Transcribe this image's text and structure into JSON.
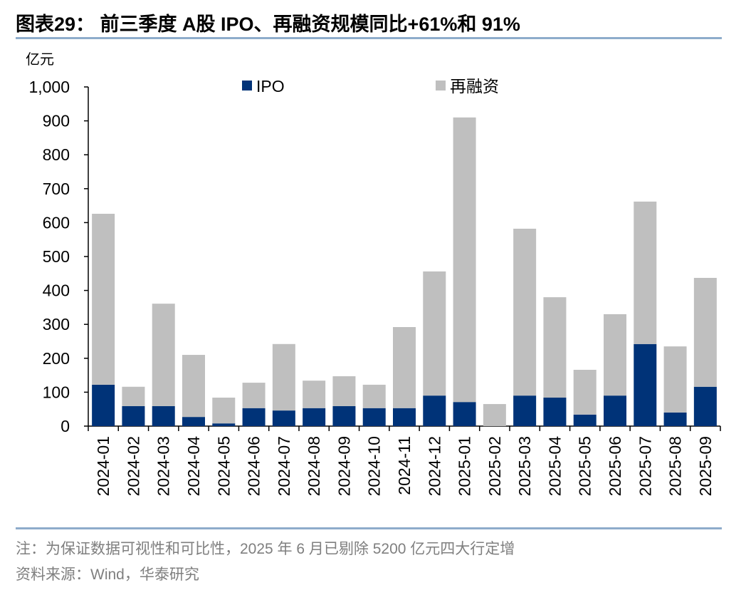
{
  "title": "图表29：  前三季度 A股 IPO、再融资规模同比+61%和 91%",
  "note": "注：为保证数据可视性和可比性，2025 年 6 月已剔除 5200 亿元四大行定增",
  "source": "资料来源：Wind，华泰研究",
  "colors": {
    "ipo": "#003378",
    "refi": "#bfbfbf",
    "rule": "#8eaccb"
  },
  "chart_data": {
    "type": "bar",
    "stacked": true,
    "ylabel": "亿元",
    "ylim": [
      0,
      1000
    ],
    "yticks": [
      "0",
      "100",
      "200",
      "300",
      "400",
      "500",
      "600",
      "700",
      "800",
      "900",
      "1,000"
    ],
    "legend_position": "top",
    "categories": [
      "2024-01",
      "2024-02",
      "2024-03",
      "2024-04",
      "2024-05",
      "2024-06",
      "2024-07",
      "2024-08",
      "2024-09",
      "2024-10",
      "2024-11",
      "2024-12",
      "2025-01",
      "2025-02",
      "2025-03",
      "2025-04",
      "2025-05",
      "2025-06",
      "2025-07",
      "2025-08",
      "2025-09"
    ],
    "series": [
      {
        "name": "IPO",
        "values": [
          122,
          59,
          59,
          27,
          8,
          53,
          46,
          53,
          59,
          53,
          53,
          90,
          71,
          0,
          90,
          84,
          34,
          90,
          242,
          40,
          116
        ]
      },
      {
        "name": "再融资",
        "values": [
          504,
          57,
          302,
          183,
          76,
          75,
          196,
          81,
          88,
          69,
          239,
          366,
          839,
          65,
          492,
          296,
          132,
          240,
          420,
          195,
          321
        ]
      }
    ]
  }
}
